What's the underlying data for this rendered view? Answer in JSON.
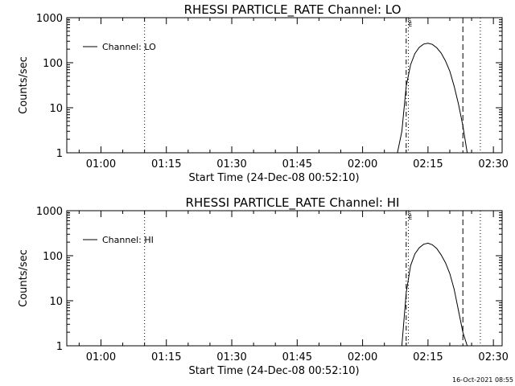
{
  "chart_data": [
    {
      "type": "line",
      "title": "RHESSI PARTICLE_RATE Channel: LO",
      "xlabel": "Start Time (24-Dec-08 00:52:10)",
      "ylabel": "Counts/sec",
      "ylog": true,
      "ylim": [
        1,
        1000
      ],
      "xlim": [
        "00:52:10",
        "02:32:00"
      ],
      "xticks": [
        "01:00",
        "01:15",
        "01:30",
        "01:45",
        "02:00",
        "02:15",
        "02:30"
      ],
      "yticks": [
        "1",
        "10",
        "100",
        "1000"
      ],
      "legend_position": "top-left",
      "series": [
        {
          "name": "Channel: LO",
          "x": [
            "02:08",
            "02:09",
            "02:10",
            "02:11",
            "02:12",
            "02:13",
            "02:14",
            "02:15",
            "02:16",
            "02:17",
            "02:18",
            "02:19",
            "02:20",
            "02:21",
            "02:22",
            "02:23",
            "02:24"
          ],
          "y": [
            1,
            3,
            30,
            90,
            160,
            220,
            260,
            270,
            255,
            215,
            165,
            110,
            65,
            30,
            12,
            4,
            1
          ]
        }
      ],
      "vertical_lines": [
        {
          "x": "01:10",
          "style": "dotted"
        },
        {
          "x": "02:10",
          "style": "dash-dot"
        },
        {
          "x": "02:10.5",
          "style": "dotted"
        },
        {
          "x": "02:23",
          "style": "dashed"
        },
        {
          "x": "02:27",
          "style": "dotted"
        }
      ]
    },
    {
      "type": "line",
      "title": "RHESSI PARTICLE_RATE Channel: HI",
      "xlabel": "Start Time (24-Dec-08 00:52:10)",
      "ylabel": "Counts/sec",
      "ylog": true,
      "ylim": [
        1,
        1000
      ],
      "xlim": [
        "00:52:10",
        "02:32:00"
      ],
      "xticks": [
        "01:00",
        "01:15",
        "01:30",
        "01:45",
        "02:00",
        "02:15",
        "02:30"
      ],
      "yticks": [
        "1",
        "10",
        "100",
        "1000"
      ],
      "legend_position": "top-left",
      "series": [
        {
          "name": "Channel: HI",
          "x": [
            "02:09",
            "02:10",
            "02:11",
            "02:12",
            "02:13",
            "02:14",
            "02:15",
            "02:16",
            "02:17",
            "02:18",
            "02:19",
            "02:20",
            "02:21",
            "02:22",
            "02:23",
            "02:24"
          ],
          "y": [
            1,
            15,
            60,
            110,
            150,
            180,
            190,
            175,
            145,
            105,
            70,
            40,
            18,
            6,
            2,
            1
          ]
        }
      ],
      "vertical_lines": [
        {
          "x": "01:10",
          "style": "dotted"
        },
        {
          "x": "02:10",
          "style": "dash-dot"
        },
        {
          "x": "02:10.5",
          "style": "dotted"
        },
        {
          "x": "02:23",
          "style": "dashed"
        },
        {
          "x": "02:27",
          "style": "dotted"
        }
      ]
    }
  ],
  "footer": "16-Oct-2021 08:55"
}
